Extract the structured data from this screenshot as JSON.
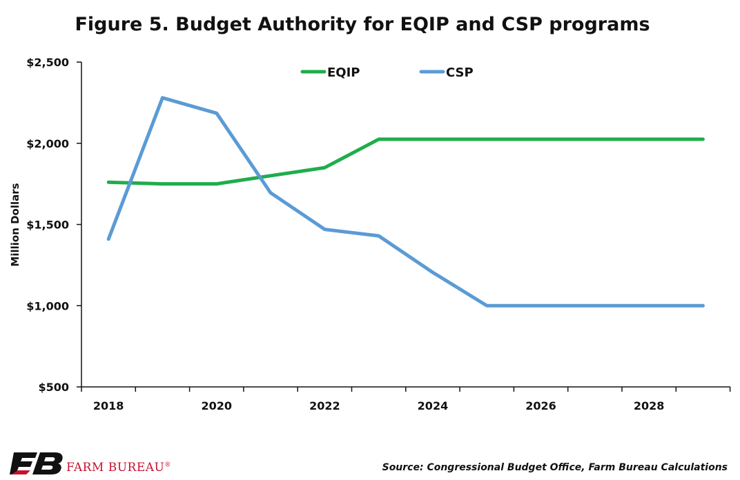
{
  "title": "Figure 5. Budget Authority for EQIP and CSP programs",
  "source": "Source: Congressional Budget Office, Farm Bureau Calculations",
  "logo": {
    "text": "FARM BUREAU",
    "mark": "®"
  },
  "colors": {
    "eqip": "#1fad4b",
    "csp": "#5b9bd5",
    "axis": "#111111",
    "logo_red": "#c8102e"
  },
  "chart_data": {
    "type": "line",
    "title": "Figure 5. Budget Authority for EQIP and CSP programs",
    "xlabel": "",
    "ylabel": "Million Dollars",
    "x": [
      2018,
      2019,
      2020,
      2021,
      2022,
      2023,
      2024,
      2025,
      2026,
      2027,
      2028,
      2029
    ],
    "xticks": [
      2018,
      2020,
      2022,
      2024,
      2026,
      2028
    ],
    "ylim": [
      500,
      2500
    ],
    "yticks": [
      500,
      1000,
      1500,
      2000,
      2500
    ],
    "ytick_labels": [
      "$500",
      "$1,000",
      "$1,500",
      "$2,000",
      "$2,500"
    ],
    "grid": false,
    "legend_position": "top-center",
    "series": [
      {
        "name": "EQIP",
        "values": [
          1760,
          1750,
          1750,
          1800,
          1850,
          2025,
          2025,
          2025,
          2025,
          2025,
          2025,
          2025
        ]
      },
      {
        "name": "CSP",
        "values": [
          1410,
          2280,
          2185,
          1695,
          1470,
          1430,
          1205,
          1000,
          1000,
          1000,
          1000,
          1000
        ]
      }
    ]
  }
}
